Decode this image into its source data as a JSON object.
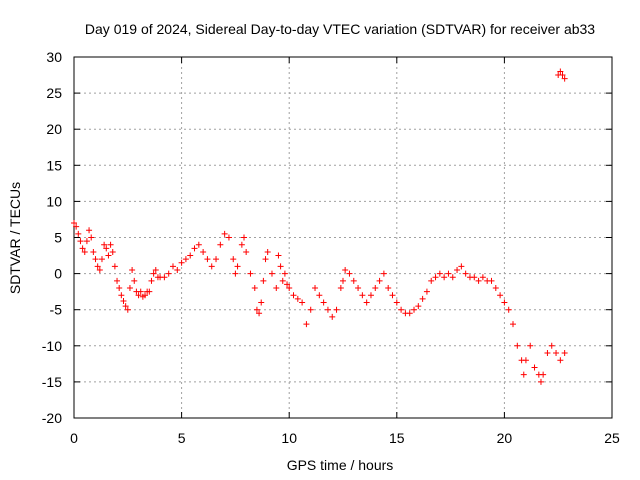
{
  "chart_data": {
    "type": "scatter",
    "title": "Day 019 of 2024, Sidereal Day-to-day VTEC variation (SDTVAR) for receiver ab33",
    "xlabel": "GPS time / hours",
    "ylabel": "SDTVAR / TECUs",
    "xlim": [
      0,
      25
    ],
    "ylim": [
      -20,
      30
    ],
    "xticks": [
      0,
      5,
      10,
      15,
      20,
      25
    ],
    "yticks": [
      -20,
      -15,
      -10,
      -5,
      0,
      5,
      10,
      15,
      20,
      25,
      30
    ],
    "grid": true,
    "marker": "+",
    "color": "#ff0000",
    "series": [
      {
        "name": "SDTVAR",
        "points": [
          [
            0.0,
            7.0
          ],
          [
            0.1,
            6.5
          ],
          [
            0.2,
            5.5
          ],
          [
            0.3,
            4.5
          ],
          [
            0.4,
            3.5
          ],
          [
            0.5,
            3.0
          ],
          [
            0.6,
            4.5
          ],
          [
            0.7,
            6.0
          ],
          [
            0.8,
            5.0
          ],
          [
            0.9,
            3.0
          ],
          [
            1.0,
            2.0
          ],
          [
            1.1,
            1.0
          ],
          [
            1.2,
            0.5
          ],
          [
            1.3,
            2.0
          ],
          [
            1.4,
            4.0
          ],
          [
            1.5,
            3.5
          ],
          [
            1.6,
            2.5
          ],
          [
            1.7,
            4.0
          ],
          [
            1.8,
            3.0
          ],
          [
            1.9,
            1.0
          ],
          [
            2.0,
            -1.0
          ],
          [
            2.1,
            -2.0
          ],
          [
            2.2,
            -3.0
          ],
          [
            2.3,
            -3.8
          ],
          [
            2.4,
            -4.5
          ],
          [
            2.5,
            -5.0
          ],
          [
            2.6,
            -2.0
          ],
          [
            2.7,
            0.5
          ],
          [
            2.8,
            -1.0
          ],
          [
            2.9,
            -2.5
          ],
          [
            3.0,
            -3.0
          ],
          [
            3.1,
            -2.5
          ],
          [
            3.2,
            -3.2
          ],
          [
            3.3,
            -3.0
          ],
          [
            3.4,
            -2.5
          ],
          [
            3.5,
            -2.5
          ],
          [
            3.6,
            -1.0
          ],
          [
            3.7,
            0.0
          ],
          [
            3.8,
            0.5
          ],
          [
            3.9,
            -0.5
          ],
          [
            4.0,
            -0.5
          ],
          [
            4.2,
            -0.5
          ],
          [
            4.4,
            0.0
          ],
          [
            4.6,
            1.0
          ],
          [
            4.8,
            0.5
          ],
          [
            5.0,
            1.5
          ],
          [
            5.2,
            2.0
          ],
          [
            5.4,
            2.5
          ],
          [
            5.6,
            3.5
          ],
          [
            5.8,
            4.0
          ],
          [
            6.0,
            3.0
          ],
          [
            6.2,
            2.0
          ],
          [
            6.4,
            1.0
          ],
          [
            6.6,
            2.0
          ],
          [
            6.8,
            4.0
          ],
          [
            7.0,
            5.5
          ],
          [
            7.2,
            5.0
          ],
          [
            7.4,
            2.0
          ],
          [
            7.5,
            0.0
          ],
          [
            7.6,
            1.0
          ],
          [
            7.8,
            4.0
          ],
          [
            7.9,
            5.0
          ],
          [
            8.0,
            3.0
          ],
          [
            8.2,
            0.0
          ],
          [
            8.4,
            -2.0
          ],
          [
            8.5,
            -5.0
          ],
          [
            8.6,
            -5.5
          ],
          [
            8.7,
            -4.0
          ],
          [
            8.8,
            -1.0
          ],
          [
            8.9,
            2.0
          ],
          [
            9.0,
            3.0
          ],
          [
            9.2,
            0.0
          ],
          [
            9.4,
            -2.0
          ],
          [
            9.5,
            2.5
          ],
          [
            9.6,
            1.0
          ],
          [
            9.7,
            -1.0
          ],
          [
            9.8,
            0.0
          ],
          [
            9.9,
            -1.5
          ],
          [
            10.0,
            -2.0
          ],
          [
            10.2,
            -3.0
          ],
          [
            10.4,
            -3.5
          ],
          [
            10.6,
            -4.0
          ],
          [
            10.8,
            -7.0
          ],
          [
            11.0,
            -5.0
          ],
          [
            11.2,
            -2.0
          ],
          [
            11.4,
            -3.0
          ],
          [
            11.6,
            -4.0
          ],
          [
            11.8,
            -5.0
          ],
          [
            12.0,
            -6.0
          ],
          [
            12.2,
            -5.0
          ],
          [
            12.4,
            -2.0
          ],
          [
            12.5,
            -1.0
          ],
          [
            12.6,
            0.5
          ],
          [
            12.8,
            0.0
          ],
          [
            13.0,
            -1.0
          ],
          [
            13.2,
            -2.0
          ],
          [
            13.4,
            -3.0
          ],
          [
            13.6,
            -4.0
          ],
          [
            13.8,
            -3.0
          ],
          [
            14.0,
            -2.0
          ],
          [
            14.2,
            -1.0
          ],
          [
            14.4,
            0.0
          ],
          [
            14.6,
            -2.0
          ],
          [
            14.8,
            -3.0
          ],
          [
            15.0,
            -4.0
          ],
          [
            15.2,
            -5.0
          ],
          [
            15.4,
            -5.5
          ],
          [
            15.6,
            -5.5
          ],
          [
            15.8,
            -5.0
          ],
          [
            16.0,
            -4.5
          ],
          [
            16.2,
            -3.5
          ],
          [
            16.4,
            -2.5
          ],
          [
            16.6,
            -1.0
          ],
          [
            16.8,
            -0.5
          ],
          [
            17.0,
            0.0
          ],
          [
            17.2,
            -0.5
          ],
          [
            17.4,
            0.0
          ],
          [
            17.6,
            -0.5
          ],
          [
            17.8,
            0.5
          ],
          [
            18.0,
            1.0
          ],
          [
            18.2,
            0.0
          ],
          [
            18.4,
            -0.5
          ],
          [
            18.6,
            -0.5
          ],
          [
            18.8,
            -1.0
          ],
          [
            19.0,
            -0.5
          ],
          [
            19.2,
            -1.0
          ],
          [
            19.4,
            -1.0
          ],
          [
            19.6,
            -2.0
          ],
          [
            19.8,
            -3.0
          ],
          [
            20.0,
            -4.0
          ],
          [
            20.2,
            -5.0
          ],
          [
            20.4,
            -7.0
          ],
          [
            20.6,
            -10.0
          ],
          [
            20.8,
            -12.0
          ],
          [
            20.9,
            -14.0
          ],
          [
            21.0,
            -12.0
          ],
          [
            21.2,
            -10.0
          ],
          [
            21.4,
            -13.0
          ],
          [
            21.6,
            -14.0
          ],
          [
            21.7,
            -15.0
          ],
          [
            21.8,
            -14.0
          ],
          [
            22.0,
            -11.0
          ],
          [
            22.2,
            -10.0
          ],
          [
            22.4,
            -11.0
          ],
          [
            22.6,
            -12.0
          ],
          [
            22.8,
            -11.0
          ],
          [
            22.5,
            27.5
          ],
          [
            22.6,
            28.0
          ],
          [
            22.7,
            27.5
          ],
          [
            22.8,
            27.0
          ]
        ]
      }
    ]
  }
}
